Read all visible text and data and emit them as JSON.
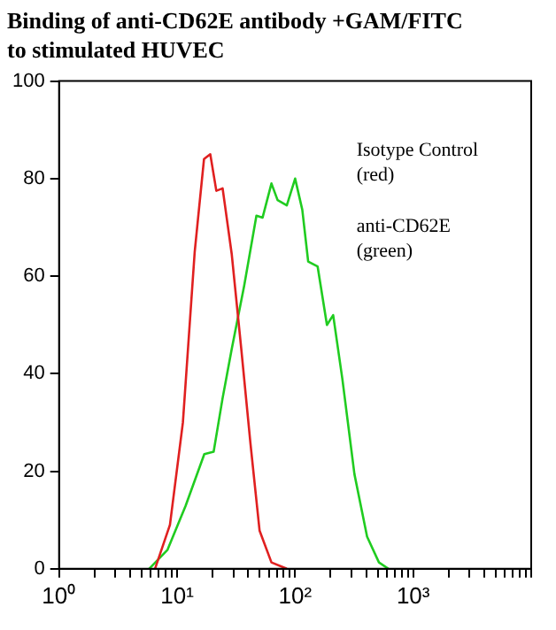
{
  "chart_data": {
    "type": "line",
    "title": "Binding of anti-CD62E antibody +GAM/FITC\nto stimulated HUVEC",
    "annotations": [
      "Isotype Control\n(red)",
      "anti-CD62E\n(green)"
    ],
    "log": "x",
    "grid": false,
    "xlim": [
      1,
      10000
    ],
    "ylim": [
      0,
      100
    ],
    "yticks": [
      0,
      20,
      40,
      60,
      80,
      100
    ],
    "xticks": [
      {
        "value": 1,
        "label": "10⁰"
      },
      {
        "value": 2,
        "label": null
      },
      {
        "value": 3,
        "label": null
      },
      {
        "value": 4,
        "label": null
      },
      {
        "value": 5,
        "label": null
      },
      {
        "value": 6,
        "label": null
      },
      {
        "value": 7,
        "label": null
      },
      {
        "value": 8,
        "label": null
      },
      {
        "value": 9,
        "label": null
      },
      {
        "value": 10,
        "label": "10¹"
      },
      {
        "value": 20,
        "label": null
      },
      {
        "value": 30,
        "label": null
      },
      {
        "value": 40,
        "label": null
      },
      {
        "value": 50,
        "label": null
      },
      {
        "value": 60,
        "label": null
      },
      {
        "value": 70,
        "label": null
      },
      {
        "value": 80,
        "label": null
      },
      {
        "value": 90,
        "label": null
      },
      {
        "value": 100,
        "label": "10²"
      },
      {
        "value": 200,
        "label": null
      },
      {
        "value": 300,
        "label": null
      },
      {
        "value": 400,
        "label": null
      },
      {
        "value": 500,
        "label": null
      },
      {
        "value": 600,
        "label": null
      },
      {
        "value": 700,
        "label": null
      },
      {
        "value": 800,
        "label": null
      },
      {
        "value": 900,
        "label": null
      },
      {
        "value": 1000,
        "label": "10³"
      },
      {
        "value": 2000,
        "label": null
      },
      {
        "value": 3000,
        "label": null
      },
      {
        "value": 4000,
        "label": null
      },
      {
        "value": 5000,
        "label": null
      },
      {
        "value": 6000,
        "label": null
      },
      {
        "value": 7000,
        "label": null
      },
      {
        "value": 8000,
        "label": null
      },
      {
        "value": 9000,
        "label": null
      },
      {
        "value": 10000,
        "label": null
      }
    ],
    "series": [
      {
        "color": "#e02020",
        "x": [
          6.5,
          8.7,
          11.2,
          14.1,
          16.9,
          19.1,
          21.5,
          24.3,
          29,
          35,
          41.7,
          50,
          63,
          85
        ],
        "values": [
          0,
          9,
          30,
          65,
          84,
          85,
          77.5,
          78,
          64.6,
          45,
          26,
          7.8,
          1.3,
          0
        ]
      },
      {
        "color": "#20cc20",
        "x": [
          5.8,
          8.3,
          11.8,
          17,
          20.4,
          24.3,
          29,
          37,
          47,
          53,
          63,
          71,
          85,
          100,
          115,
          129,
          155,
          186,
          210,
          251,
          318,
          407,
          513,
          617
        ],
        "values": [
          0,
          3.9,
          12.9,
          23.5,
          24,
          35,
          45,
          58,
          72.4,
          72,
          79,
          75.6,
          74.5,
          80,
          73.6,
          63,
          62,
          50,
          52,
          39,
          19.4,
          6.6,
          1.3,
          0
        ]
      }
    ]
  }
}
